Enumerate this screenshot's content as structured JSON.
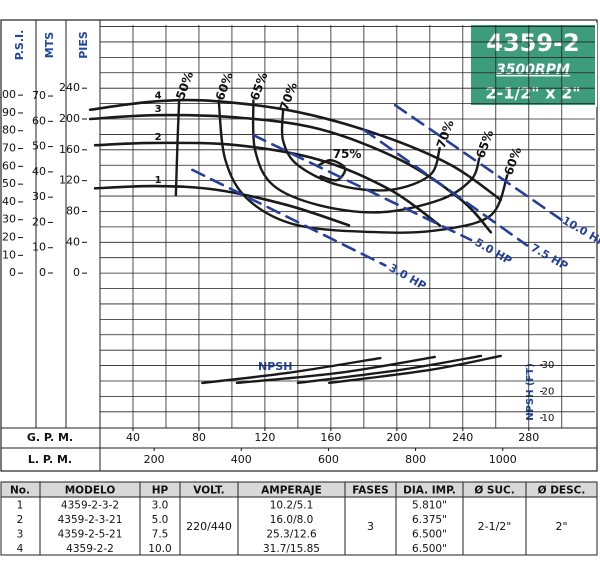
{
  "chart_data": {
    "type": "line",
    "title": "4359-2",
    "subtitle": "3500RPM",
    "size_label": "2-1/2\" x 2\"",
    "x_label": "G. P. M.",
    "x2_label": "L. P. M.",
    "xlim": [
      20,
      305
    ],
    "xticks": [
      40,
      80,
      120,
      160,
      200,
      240,
      280
    ],
    "x2lim": [
      75.7,
      1154.4
    ],
    "x2ticks": [
      200,
      400,
      600,
      800,
      1000
    ],
    "xgrid": [
      40,
      60,
      80,
      100,
      120,
      140,
      160,
      180,
      200,
      220,
      240,
      260,
      280,
      300
    ],
    "ylim": [
      -201,
      322
    ],
    "ygrid": [
      -180,
      -160,
      -140,
      -120,
      -100,
      -80,
      -60,
      -40,
      -20,
      0,
      20,
      40,
      60,
      80,
      100,
      120,
      140,
      160,
      180,
      200,
      220,
      240,
      260,
      280,
      300,
      320
    ],
    "axes": [
      {
        "label": "P.S.I.",
        "ylim": [
          -87,
          139.4
        ],
        "yticks": [
          0,
          10,
          20,
          30,
          40,
          50,
          60,
          70,
          80,
          90,
          100
        ]
      },
      {
        "label": "MTS",
        "ylim": [
          -61.3,
          98.1
        ],
        "yticks": [
          0,
          10,
          20,
          30,
          40,
          50,
          60,
          70
        ]
      },
      {
        "label": "PIES",
        "ylim": [
          -201,
          322
        ],
        "yticks": [
          0,
          40,
          80,
          120,
          160,
          200,
          240
        ]
      }
    ],
    "series": [
      {
        "name": "1",
        "color": "#1a1a1a",
        "x": [
          17,
          54,
          91,
          134,
          171
        ],
        "values": [
          110,
          113,
          108,
          88,
          62
        ]
      },
      {
        "name": "2",
        "color": "#1a1a1a",
        "x": [
          17,
          54,
          103,
          153,
          196,
          226
        ],
        "values": [
          166,
          169,
          166,
          147,
          108,
          62
        ]
      },
      {
        "name": "3",
        "color": "#1a1a1a",
        "x": [
          14,
          54,
          103,
          153,
          202,
          239,
          257
        ],
        "values": [
          200,
          205,
          202,
          187,
          147,
          95,
          53
        ]
      },
      {
        "name": "4",
        "color": "#1a1a1a",
        "x": [
          14,
          54,
          91,
          140,
          190,
          233,
          263
        ],
        "values": [
          212,
          223,
          223,
          209,
          179,
          140,
          95
        ]
      }
    ],
    "efficiency": [
      {
        "name": "50%",
        "x": [
          68,
          67,
          66
        ],
        "values": [
          225,
          170,
          101
        ]
      },
      {
        "name": "60%",
        "x": [
          92,
          96,
          110,
          140,
          190,
          226,
          257,
          267
        ],
        "values": [
          224,
          147,
          95,
          62,
          53,
          56,
          75,
          127
        ]
      },
      {
        "name": "65%",
        "x": [
          113,
          114,
          125,
          153,
          190,
          226,
          245,
          250
        ],
        "values": [
          224,
          160,
          114,
          88,
          79,
          95,
          121,
          149
        ]
      },
      {
        "name": "70%",
        "x": [
          131,
          131,
          140,
          165,
          196,
          220,
          226
        ],
        "values": [
          211,
          172,
          140,
          114,
          108,
          127,
          162
        ]
      },
      {
        "name": "75%",
        "x": [
          152.6,
          160,
          168.6,
          163.7,
          153.8
        ],
        "values": [
          140,
          146.6,
          136,
          120.6,
          125.8
        ]
      }
    ],
    "hp_lines": [
      {
        "name": "3.0 HP",
        "color": "#24409a",
        "x": [
          76,
          193
        ],
        "values": [
          134,
          10
        ]
      },
      {
        "name": "5.0 HP",
        "color": "#24409a",
        "x": [
          113,
          245
        ],
        "values": [
          179,
          43
        ]
      },
      {
        "name": "7.5 HP",
        "color": "#24409a",
        "x": [
          180,
          279
        ],
        "values": [
          186,
          36
        ]
      },
      {
        "name": "10.0 HP",
        "color": "#24409a",
        "x": [
          199,
          300
        ],
        "values": [
          218,
          69
        ]
      }
    ],
    "npsh": {
      "label": "NPSH",
      "axis_label": "NPSH (FT)",
      "ylim": [
        6.2,
        39.4
      ],
      "yticks": [
        10,
        20,
        30
      ],
      "series": [
        {
          "x": [
            82,
            134,
            190
          ],
          "values": [
            23.2,
            27,
            32.6
          ]
        },
        {
          "x": [
            103,
            165,
            223
          ],
          "values": [
            23.2,
            27,
            33
          ]
        },
        {
          "x": [
            140,
            202,
            251
          ],
          "values": [
            23.2,
            28.1,
            33.4
          ]
        },
        {
          "x": [
            159,
            220,
            263
          ],
          "values": [
            23.2,
            28.1,
            33.4
          ]
        }
      ]
    }
  },
  "table": {
    "headers": [
      "No.",
      "MODELO",
      "HP",
      "VOLT.",
      "AMPERAJE",
      "FASES",
      "DIA. IMP.",
      "Ø SUC.",
      "Ø DESC."
    ],
    "rows": [
      [
        "1",
        "4359-2-3-2",
        "3.0",
        "10.2/5.1",
        "5.810\""
      ],
      [
        "2",
        "4359-2-3-21",
        "5.0",
        "16.0/8.0",
        "6.375\""
      ],
      [
        "3",
        "4359-2-5-21",
        "7.5",
        "25.3/12.6",
        "6.500\""
      ],
      [
        "4",
        "4359-2-2",
        "10.0",
        "31.7/15.85",
        "6.500\""
      ]
    ],
    "shared": {
      "volt": "220/440",
      "fases": "3",
      "suc": "2-1/2\"",
      "desc": "2\""
    }
  }
}
